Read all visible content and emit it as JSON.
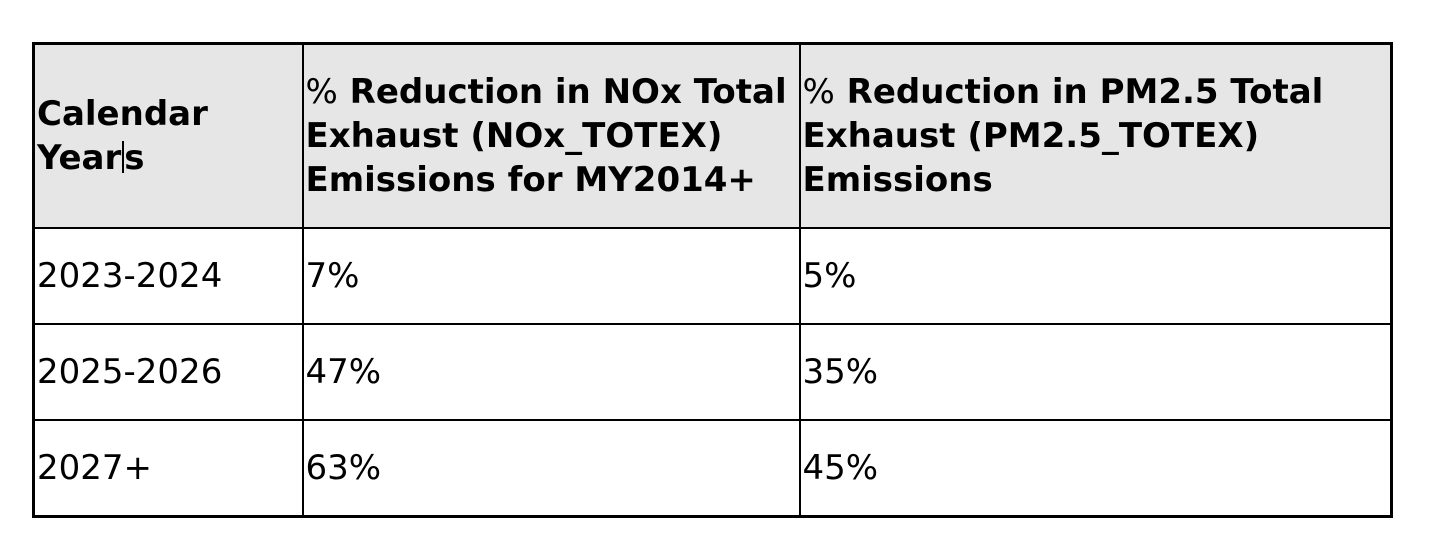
{
  "table": {
    "header": {
      "col1": {
        "line1": "Calendar",
        "line2_a": "Year",
        "line2_b": "s"
      },
      "col2": {
        "pct": "%",
        "text": "Reduction in NOx Total Exhaust (NOx_TOTEX) Emissions for MY2014+"
      },
      "col3": {
        "pct": "%",
        "text": "Reduction in PM2.5 Total Exhaust (PM2.5_TOTEX) Emissions"
      }
    },
    "rows": [
      {
        "years": "2023-2024",
        "nox": "7%",
        "pm25": "5%"
      },
      {
        "years": "2025-2026",
        "nox": "47%",
        "pm25": "35%"
      },
      {
        "years": "2027+",
        "nox": "63%",
        "pm25": "45%"
      }
    ]
  }
}
